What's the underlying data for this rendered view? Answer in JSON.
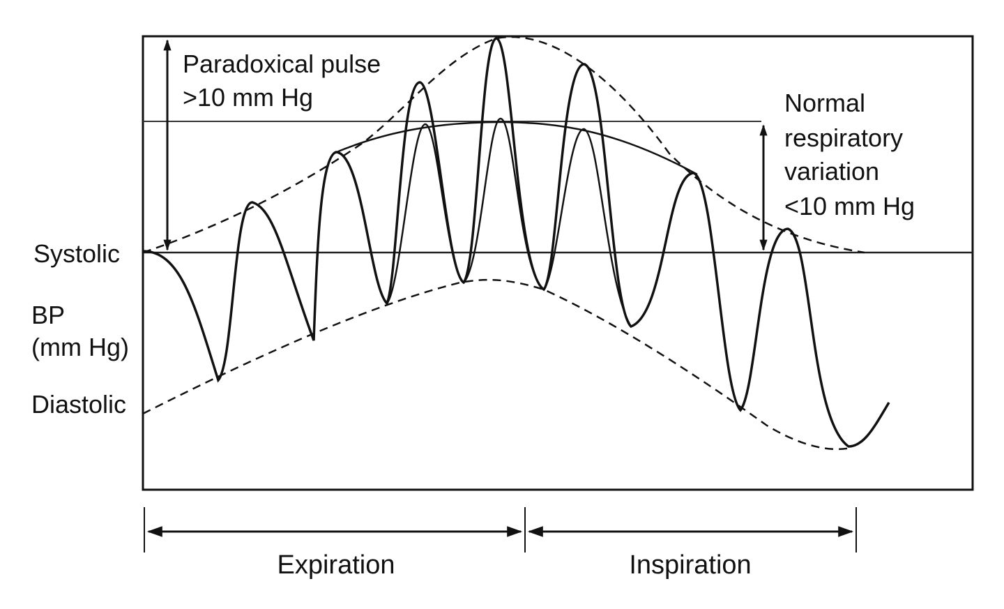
{
  "diagram": {
    "annotations": {
      "paradoxical_line1": "Paradoxical pulse",
      "paradoxical_line2": ">10 mm Hg",
      "normal_line1": "Normal",
      "normal_line2": "respiratory",
      "normal_line3": "variation",
      "normal_line4": "<10 mm Hg"
    },
    "axis": {
      "systolic": "Systolic",
      "bp": "BP",
      "units": "(mm Hg)",
      "diastolic": "Diastolic"
    },
    "phases": {
      "expiration": "Expiration",
      "inspiration": "Inspiration"
    },
    "style": {
      "line_color": "#111111",
      "background": "#ffffff"
    }
  }
}
